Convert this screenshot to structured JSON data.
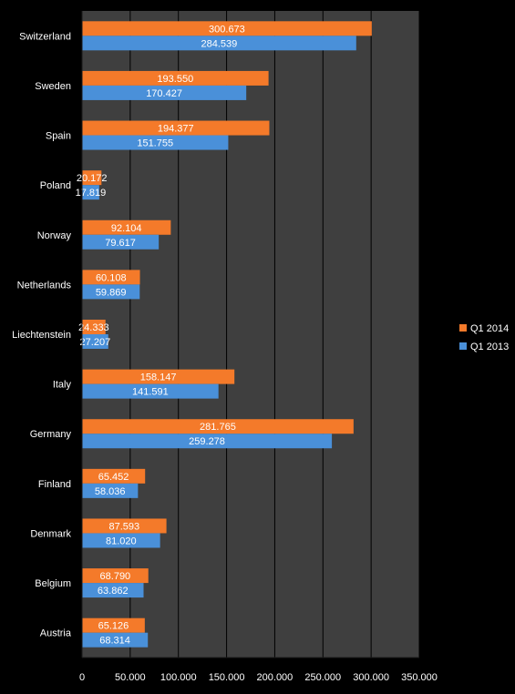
{
  "chart_data": {
    "type": "bar",
    "orientation": "horizontal",
    "title": "",
    "xlabel": "",
    "ylabel": "",
    "categories": [
      "Switzerland",
      "Sweden",
      "Spain",
      "Poland",
      "Norway",
      "Netherlands",
      "Liechtenstein",
      "Italy",
      "Germany",
      "Finland",
      "Denmark",
      "Belgium",
      "Austria"
    ],
    "series": [
      {
        "name": "Q1 2014",
        "color": "#f47a2a",
        "values": [
          300.673,
          193.55,
          194.377,
          20.172,
          92.104,
          60.108,
          24.333,
          158.147,
          281.765,
          65.452,
          87.593,
          68.79,
          65.126
        ],
        "labels": [
          "300.673",
          "193.550",
          "194.377",
          "20.172",
          "92.104",
          "60.108",
          "24.333",
          "158.147",
          "281.765",
          "65.452",
          "87.593",
          "68.790",
          "65.126"
        ]
      },
      {
        "name": "Q1 2013",
        "color": "#4a90d9",
        "values": [
          284.539,
          170.427,
          151.755,
          17.819,
          79.617,
          59.869,
          27.207,
          141.591,
          259.278,
          58.036,
          81.02,
          63.862,
          68.314
        ],
        "labels": [
          "284.539",
          "170.427",
          "151.755",
          "17.819",
          "79.617",
          "59.869",
          "27.207",
          "141.591",
          "259.278",
          "58.036",
          "81.020",
          "63.862",
          "68.314"
        ]
      }
    ],
    "xlim": [
      0,
      350
    ],
    "xticks": [
      0,
      50,
      100,
      150,
      200,
      250,
      300,
      350
    ],
    "xtick_labels": [
      "0",
      "50.000",
      "100.000",
      "150.000",
      "200.000",
      "250.000",
      "300.000",
      "350.000"
    ],
    "legend": {
      "placement": "right",
      "entries": [
        "Q1 2014",
        "Q1 2013"
      ]
    },
    "grid": true,
    "plot_background": "#3f3f3f",
    "page_background": "#000000",
    "gridline_color": "#000000",
    "text_color": "#ffffff"
  }
}
